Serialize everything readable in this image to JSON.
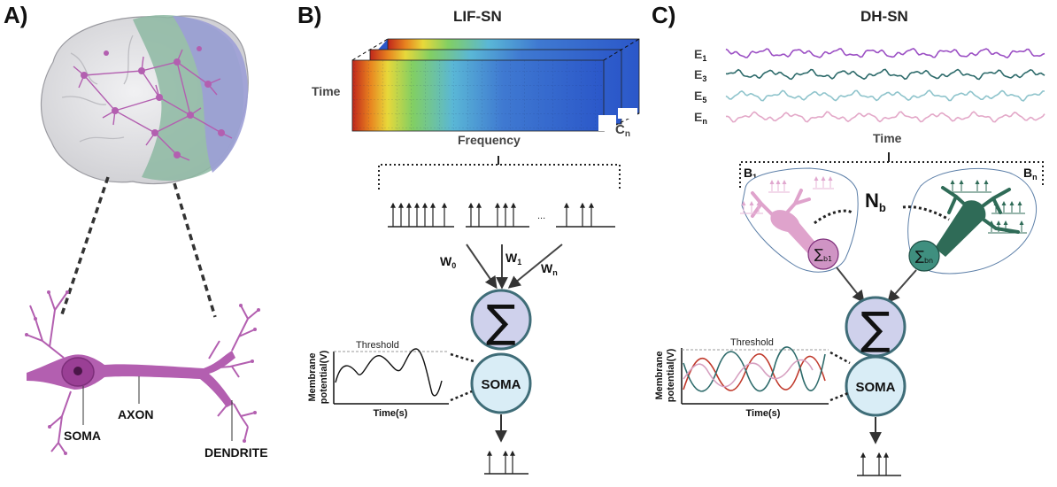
{
  "panels": {
    "a": {
      "letter": "A)",
      "labels": {
        "soma": "SOMA",
        "axon": "AXON",
        "dendrite": "DENDRITE"
      }
    },
    "b": {
      "letter": "B)",
      "title": "LIF-SN",
      "time_label": "Time",
      "frequency_label": "Frequency",
      "channel_label": "C",
      "channel_sub": "n",
      "ellipsis": "...",
      "weights": [
        {
          "base": "W",
          "sub": "0"
        },
        {
          "base": "W",
          "sub": "1"
        },
        {
          "base": "W",
          "sub": "n"
        }
      ],
      "sum_symbol": "∑",
      "soma_label": "SOMA",
      "plot": {
        "threshold": "Threshold",
        "ylabel_1": "Membrane",
        "ylabel_2": "potential(V)",
        "xlabel": "Time(s)"
      }
    },
    "c": {
      "letter": "C)",
      "title": "DH-SN",
      "signals": [
        {
          "base": "E",
          "sub": "1",
          "color": "#9b4fc4"
        },
        {
          "base": "E",
          "sub": "3",
          "color": "#2e6b6b"
        },
        {
          "base": "E",
          "sub": "5",
          "color": "#8fc4cc"
        },
        {
          "base": "E",
          "sub": "n",
          "color": "#e3a8c8"
        }
      ],
      "time_label": "Time",
      "branch_first": {
        "base": "B",
        "sub": "1"
      },
      "branch_last": {
        "base": "B",
        "sub": "n"
      },
      "nb": {
        "base": "N",
        "sub": "b"
      },
      "sum_b1": {
        "base": "∑",
        "sub": "b1"
      },
      "sum_bn": {
        "base": "∑",
        "sub": "bn"
      },
      "sum_symbol": "∑",
      "soma_label": "SOMA",
      "plot": {
        "threshold": "Threshold",
        "ylabel_1": "Membrane",
        "ylabel_2": "potential(V)",
        "xlabel": "Time(s)"
      }
    }
  },
  "colors": {
    "neuron_purple": "#b35fb0",
    "neuron_dark": "#7d2e7a",
    "sum_fill": "#cfd1ec",
    "soma_fill": "#d9edf6",
    "node_stroke": "#3f6d78",
    "dendrite_pink": "#dfa3cc",
    "dendrite_green": "#2f6b57",
    "brain_gray": "#e4e4e6",
    "brain_green": "#8db8a2",
    "brain_violet": "#9c9fd6",
    "trace_red": "#c0392b",
    "trace_teal": "#2e6b6b",
    "trace_pink": "#d6a0c0"
  }
}
